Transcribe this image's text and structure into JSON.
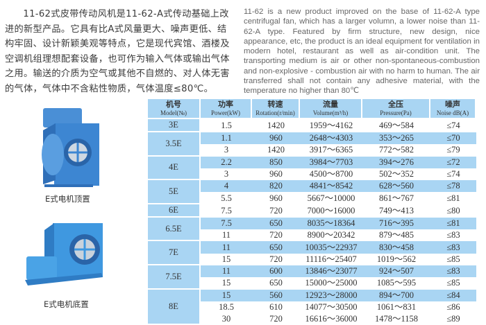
{
  "intro_cn": "11-62式皮带传动风机是11-62-A式传动基础上改进的新型产品。它具有比A式风量更大、噪声更低、结构牢固、设计新颖美观等特点，它是现代宾馆、酒楼及空调机组理想配套设备，也可作为输入气体或输出气体之用。输送的介质为空气或其他不自燃的、对人体无害的气体，气体中不含粘性物质，气体温度≤80℃。",
  "intro_en": "11-62 is a new product improved on the base of 11-62-A type centrifugal fan, which has a larger volumn, a lower noise than 11-62-A type. Featured by firm structure, new design, nice appearance, etc, the product is an ideal equipment for ventilation in modern hotel, restaurant as well as air-condition unit. The transporting medium is air or other non-spontaneous-combustion and non-explosive - combustion air with no harm to human. The air transferred shall not contain any adhesive material, with the temperature no higher than 80℃",
  "images": [
    {
      "caption": "E式电机顶置",
      "icon": "fan-motor-top-image"
    },
    {
      "caption": "E式电机底置",
      "icon": "fan-motor-bottom-image"
    }
  ],
  "colors": {
    "table_blue": "#a9d5f3",
    "fan_blue": "#3f8fd8"
  },
  "table": {
    "headers": [
      {
        "cn": "机号",
        "en": "Model(№)"
      },
      {
        "cn": "功率",
        "en": "Power(kW)"
      },
      {
        "cn": "转速",
        "en": "Rotation(r/min)"
      },
      {
        "cn": "流量",
        "en": "Volume(m³/h)"
      },
      {
        "cn": "全压",
        "en": "Pressure(Pa)"
      },
      {
        "cn": "噪声",
        "en": "Noise dB(A)"
      }
    ],
    "groups": [
      {
        "model": "3E",
        "rows": [
          [
            "1.5",
            "1420",
            "1959～4162",
            "469～584",
            "≤74"
          ]
        ]
      },
      {
        "model": "3.5E",
        "rows": [
          [
            "1.1",
            "960",
            "2648～4303",
            "353～265",
            "≤70"
          ],
          [
            "3",
            "1420",
            "3917～6365",
            "772～582",
            "≤79"
          ]
        ]
      },
      {
        "model": "4E",
        "rows": [
          [
            "2.2",
            "850",
            "3984～7703",
            "394～276",
            "≤72"
          ],
          [
            "3",
            "960",
            "4500～8700",
            "502～352",
            "≤74"
          ]
        ]
      },
      {
        "model": "5E",
        "rows": [
          [
            "4",
            "820",
            "4841～8542",
            "628～560",
            "≤78"
          ],
          [
            "5.5",
            "960",
            "5667～10000",
            "861～767",
            "≤81"
          ]
        ]
      },
      {
        "model": "6E",
        "rows": [
          [
            "7.5",
            "720",
            "7000～16000",
            "749～413",
            "≤80"
          ]
        ]
      },
      {
        "model": "6.5E",
        "rows": [
          [
            "7.5",
            "650",
            "8035～18364",
            "716～395",
            "≤81"
          ],
          [
            "11",
            "720",
            "8900～20342",
            "879～485",
            "≤83"
          ]
        ]
      },
      {
        "model": "7E",
        "rows": [
          [
            "11",
            "650",
            "10035～22937",
            "830～458",
            "≤83"
          ],
          [
            "15",
            "720",
            "11116～25407",
            "1019～562",
            "≤85"
          ]
        ]
      },
      {
        "model": "7.5E",
        "rows": [
          [
            "11",
            "600",
            "13846～23077",
            "924～507",
            "≤83"
          ],
          [
            "15",
            "650",
            "15000～25000",
            "1085～595",
            "≤85"
          ]
        ]
      },
      {
        "model": "8E",
        "rows": [
          [
            "15",
            "560",
            "12923～28000",
            "894～700",
            "≤84"
          ],
          [
            "18.5",
            "610",
            "14077～30500",
            "1061～831",
            "≤86"
          ],
          [
            "30",
            "720",
            "16616～36000",
            "1478～1158",
            "≤89"
          ]
        ]
      }
    ]
  }
}
